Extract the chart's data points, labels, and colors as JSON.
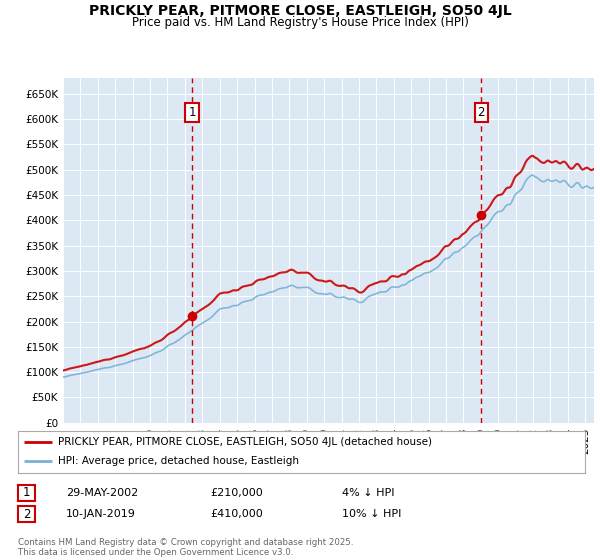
{
  "title": "PRICKLY PEAR, PITMORE CLOSE, EASTLEIGH, SO50 4JL",
  "subtitle": "Price paid vs. HM Land Registry's House Price Index (HPI)",
  "background_color": "#dce9f5",
  "ylim": [
    0,
    680000
  ],
  "yticks": [
    0,
    50000,
    100000,
    150000,
    200000,
    250000,
    300000,
    350000,
    400000,
    450000,
    500000,
    550000,
    600000,
    650000
  ],
  "ytick_labels": [
    "£0",
    "£50K",
    "£100K",
    "£150K",
    "£200K",
    "£250K",
    "£300K",
    "£350K",
    "£400K",
    "£450K",
    "£500K",
    "£550K",
    "£600K",
    "£650K"
  ],
  "line_property_color": "#cc0000",
  "line_hpi_color": "#7ab0d4",
  "legend_property": "PRICKLY PEAR, PITMORE CLOSE, EASTLEIGH, SO50 4JL (detached house)",
  "legend_hpi": "HPI: Average price, detached house, Eastleigh",
  "footer": "Contains HM Land Registry data © Crown copyright and database right 2025.\nThis data is licensed under the Open Government Licence v3.0.",
  "marker1_x": 2002.42,
  "marker2_x": 2019.03,
  "marker1_price": 210000,
  "marker2_price": 410000,
  "xmin": 1995,
  "xmax": 2025.5,
  "t1_date": "29-MAY-2002",
  "t1_price": "£210,000",
  "t1_pct": "4% ↓ HPI",
  "t2_date": "10-JAN-2019",
  "t2_price": "£410,000",
  "t2_pct": "10% ↓ HPI"
}
